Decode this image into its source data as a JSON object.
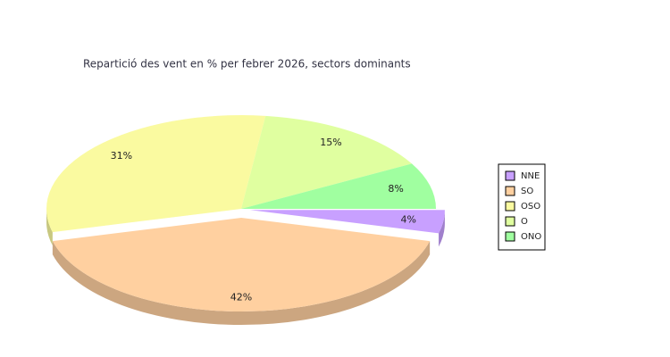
{
  "chart_data": {
    "type": "pie",
    "title": "Repartició des vent en % per febrer 2026, sectors dominants",
    "categories": [
      "NNE",
      "SO",
      "OSO",
      "O",
      "ONO"
    ],
    "values": [
      4,
      42,
      31,
      15,
      8
    ],
    "value_labels": [
      "4%",
      "42%",
      "31%",
      "15%",
      "8%"
    ],
    "colors": [
      "#c8a0ff",
      "#ffd0a0",
      "#fafaa0",
      "#e0ffa0",
      "#a0ffa0"
    ]
  }
}
